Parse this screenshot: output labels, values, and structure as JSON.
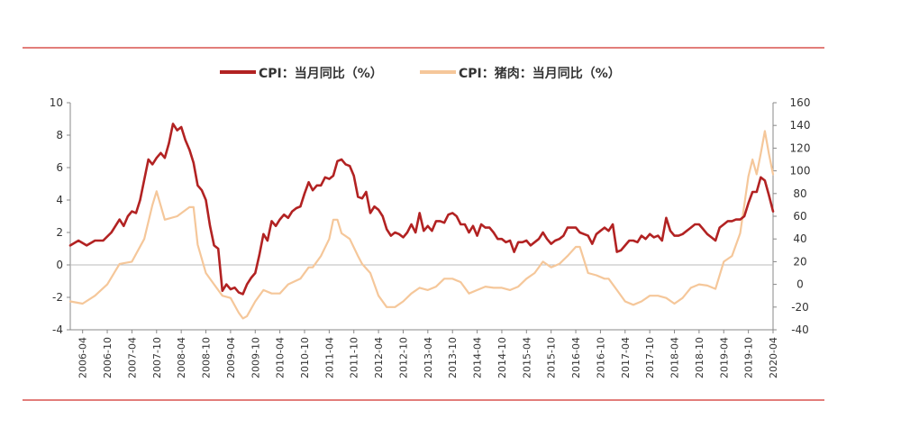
{
  "chart_data": {
    "type": "line",
    "legend": {
      "placement": "top-center",
      "entries": [
        "CPI：当月同比（%）",
        "CPI：猪肉：当月同比（%）"
      ]
    },
    "left_axis": {
      "range": [
        -4,
        10
      ],
      "ticks": [
        "-4",
        "-2",
        "0",
        "2",
        "4",
        "6",
        "8",
        "10"
      ]
    },
    "right_axis": {
      "range": [
        -40,
        160
      ],
      "ticks": [
        "-40",
        "-20",
        "0",
        "20",
        "40",
        "60",
        "80",
        "100",
        "120",
        "140",
        "160"
      ]
    },
    "x_tick_labels": [
      "2006-04",
      "2006-10",
      "2007-04",
      "2007-10",
      "2008-04",
      "2008-10",
      "2009-04",
      "2009-10",
      "2010-04",
      "2010-10",
      "2011-04",
      "2011-10",
      "2012-04",
      "2012-10",
      "2013-04",
      "2013-10",
      "2014-04",
      "2014-10",
      "2015-04",
      "2015-10",
      "2016-04",
      "2016-10",
      "2017-04",
      "2017-10",
      "2018-04",
      "2018-10",
      "2019-04",
      "2019-10",
      "2020-04"
    ],
    "series": [
      {
        "name": "CPI：当月同比（%）",
        "axis": "left",
        "color": "#b22222",
        "x_start": "2006-01",
        "x_end": "2020-04",
        "points": [
          [
            "2006-01",
            1.2
          ],
          [
            "2006-03",
            1.5
          ],
          [
            "2006-05",
            1.2
          ],
          [
            "2006-07",
            1.5
          ],
          [
            "2006-09",
            1.5
          ],
          [
            "2006-11",
            2.0
          ],
          [
            "2007-01",
            2.8
          ],
          [
            "2007-02",
            2.4
          ],
          [
            "2007-03",
            3.0
          ],
          [
            "2007-04",
            3.3
          ],
          [
            "2007-05",
            3.2
          ],
          [
            "2007-06",
            4.0
          ],
          [
            "2007-08",
            6.5
          ],
          [
            "2007-09",
            6.2
          ],
          [
            "2007-10",
            6.6
          ],
          [
            "2007-11",
            6.9
          ],
          [
            "2007-12",
            6.6
          ],
          [
            "2008-01",
            7.5
          ],
          [
            "2008-02",
            8.7
          ],
          [
            "2008-03",
            8.3
          ],
          [
            "2008-04",
            8.5
          ],
          [
            "2008-05",
            7.7
          ],
          [
            "2008-06",
            7.1
          ],
          [
            "2008-07",
            6.3
          ],
          [
            "2008-08",
            4.9
          ],
          [
            "2008-09",
            4.6
          ],
          [
            "2008-10",
            4.0
          ],
          [
            "2008-11",
            2.4
          ],
          [
            "2008-12",
            1.2
          ],
          [
            "2009-01",
            1.0
          ],
          [
            "2009-02",
            -1.6
          ],
          [
            "2009-03",
            -1.2
          ],
          [
            "2009-04",
            -1.5
          ],
          [
            "2009-05",
            -1.4
          ],
          [
            "2009-06",
            -1.7
          ],
          [
            "2009-07",
            -1.8
          ],
          [
            "2009-08",
            -1.2
          ],
          [
            "2009-09",
            -0.8
          ],
          [
            "2009-10",
            -0.5
          ],
          [
            "2009-11",
            0.6
          ],
          [
            "2009-12",
            1.9
          ],
          [
            "2010-01",
            1.5
          ],
          [
            "2010-02",
            2.7
          ],
          [
            "2010-03",
            2.4
          ],
          [
            "2010-04",
            2.8
          ],
          [
            "2010-05",
            3.1
          ],
          [
            "2010-06",
            2.9
          ],
          [
            "2010-07",
            3.3
          ],
          [
            "2010-08",
            3.5
          ],
          [
            "2010-09",
            3.6
          ],
          [
            "2010-10",
            4.4
          ],
          [
            "2010-11",
            5.1
          ],
          [
            "2010-12",
            4.6
          ],
          [
            "2011-01",
            4.9
          ],
          [
            "2011-02",
            4.9
          ],
          [
            "2011-03",
            5.4
          ],
          [
            "2011-04",
            5.3
          ],
          [
            "2011-05",
            5.5
          ],
          [
            "2011-06",
            6.4
          ],
          [
            "2011-07",
            6.5
          ],
          [
            "2011-08",
            6.2
          ],
          [
            "2011-09",
            6.1
          ],
          [
            "2011-10",
            5.5
          ],
          [
            "2011-11",
            4.2
          ],
          [
            "2011-12",
            4.1
          ],
          [
            "2012-01",
            4.5
          ],
          [
            "2012-02",
            3.2
          ],
          [
            "2012-03",
            3.6
          ],
          [
            "2012-04",
            3.4
          ],
          [
            "2012-05",
            3.0
          ],
          [
            "2012-06",
            2.2
          ],
          [
            "2012-07",
            1.8
          ],
          [
            "2012-08",
            2.0
          ],
          [
            "2012-09",
            1.9
          ],
          [
            "2012-10",
            1.7
          ],
          [
            "2012-11",
            2.0
          ],
          [
            "2012-12",
            2.5
          ],
          [
            "2013-01",
            2.0
          ],
          [
            "2013-02",
            3.2
          ],
          [
            "2013-03",
            2.1
          ],
          [
            "2013-04",
            2.4
          ],
          [
            "2013-05",
            2.1
          ],
          [
            "2013-06",
            2.7
          ],
          [
            "2013-07",
            2.7
          ],
          [
            "2013-08",
            2.6
          ],
          [
            "2013-09",
            3.1
          ],
          [
            "2013-10",
            3.2
          ],
          [
            "2013-11",
            3.0
          ],
          [
            "2013-12",
            2.5
          ],
          [
            "2014-01",
            2.5
          ],
          [
            "2014-02",
            2.0
          ],
          [
            "2014-03",
            2.4
          ],
          [
            "2014-04",
            1.8
          ],
          [
            "2014-05",
            2.5
          ],
          [
            "2014-06",
            2.3
          ],
          [
            "2014-07",
            2.3
          ],
          [
            "2014-08",
            2.0
          ],
          [
            "2014-09",
            1.6
          ],
          [
            "2014-10",
            1.6
          ],
          [
            "2014-11",
            1.4
          ],
          [
            "2014-12",
            1.5
          ],
          [
            "2015-01",
            0.8
          ],
          [
            "2015-02",
            1.4
          ],
          [
            "2015-03",
            1.4
          ],
          [
            "2015-04",
            1.5
          ],
          [
            "2015-05",
            1.2
          ],
          [
            "2015-06",
            1.4
          ],
          [
            "2015-07",
            1.6
          ],
          [
            "2015-08",
            2.0
          ],
          [
            "2015-09",
            1.6
          ],
          [
            "2015-10",
            1.3
          ],
          [
            "2015-11",
            1.5
          ],
          [
            "2015-12",
            1.6
          ],
          [
            "2016-01",
            1.8
          ],
          [
            "2016-02",
            2.3
          ],
          [
            "2016-03",
            2.3
          ],
          [
            "2016-04",
            2.3
          ],
          [
            "2016-05",
            2.0
          ],
          [
            "2016-06",
            1.9
          ],
          [
            "2016-07",
            1.8
          ],
          [
            "2016-08",
            1.3
          ],
          [
            "2016-09",
            1.9
          ],
          [
            "2016-10",
            2.1
          ],
          [
            "2016-11",
            2.3
          ],
          [
            "2016-12",
            2.1
          ],
          [
            "2017-01",
            2.5
          ],
          [
            "2017-02",
            0.8
          ],
          [
            "2017-03",
            0.9
          ],
          [
            "2017-04",
            1.2
          ],
          [
            "2017-05",
            1.5
          ],
          [
            "2017-06",
            1.5
          ],
          [
            "2017-07",
            1.4
          ],
          [
            "2017-08",
            1.8
          ],
          [
            "2017-09",
            1.6
          ],
          [
            "2017-10",
            1.9
          ],
          [
            "2017-11",
            1.7
          ],
          [
            "2017-12",
            1.8
          ],
          [
            "2018-01",
            1.5
          ],
          [
            "2018-02",
            2.9
          ],
          [
            "2018-03",
            2.1
          ],
          [
            "2018-04",
            1.8
          ],
          [
            "2018-05",
            1.8
          ],
          [
            "2018-06",
            1.9
          ],
          [
            "2018-07",
            2.1
          ],
          [
            "2018-08",
            2.3
          ],
          [
            "2018-09",
            2.5
          ],
          [
            "2018-10",
            2.5
          ],
          [
            "2018-11",
            2.2
          ],
          [
            "2018-12",
            1.9
          ],
          [
            "2019-01",
            1.7
          ],
          [
            "2019-02",
            1.5
          ],
          [
            "2019-03",
            2.3
          ],
          [
            "2019-04",
            2.5
          ],
          [
            "2019-05",
            2.7
          ],
          [
            "2019-06",
            2.7
          ],
          [
            "2019-07",
            2.8
          ],
          [
            "2019-08",
            2.8
          ],
          [
            "2019-09",
            3.0
          ],
          [
            "2019-10",
            3.8
          ],
          [
            "2019-11",
            4.5
          ],
          [
            "2019-12",
            4.5
          ],
          [
            "2020-01",
            5.4
          ],
          [
            "2020-02",
            5.2
          ],
          [
            "2020-03",
            4.3
          ],
          [
            "2020-04",
            3.3
          ]
        ]
      },
      {
        "name": "CPI：猪肉：当月同比（%）",
        "axis": "right",
        "color": "#f5c79a",
        "x_start": "2006-01",
        "x_end": "2020-04",
        "points": [
          [
            "2006-01",
            -15
          ],
          [
            "2006-04",
            -17
          ],
          [
            "2006-07",
            -10
          ],
          [
            "2006-10",
            0
          ],
          [
            "2007-01",
            18
          ],
          [
            "2007-04",
            20
          ],
          [
            "2007-07",
            40
          ],
          [
            "2007-09",
            70
          ],
          [
            "2007-10",
            82
          ],
          [
            "2007-12",
            57
          ],
          [
            "2008-03",
            60
          ],
          [
            "2008-06",
            68
          ],
          [
            "2008-07",
            68
          ],
          [
            "2008-08",
            35
          ],
          [
            "2008-10",
            10
          ],
          [
            "2008-12",
            0
          ],
          [
            "2009-02",
            -10
          ],
          [
            "2009-04",
            -12
          ],
          [
            "2009-06",
            -25
          ],
          [
            "2009-07",
            -30
          ],
          [
            "2009-08",
            -28
          ],
          [
            "2009-10",
            -15
          ],
          [
            "2009-12",
            -5
          ],
          [
            "2010-02",
            -8
          ],
          [
            "2010-04",
            -8
          ],
          [
            "2010-06",
            0
          ],
          [
            "2010-09",
            5
          ],
          [
            "2010-11",
            15
          ],
          [
            "2010-12",
            15
          ],
          [
            "2011-02",
            25
          ],
          [
            "2011-04",
            40
          ],
          [
            "2011-05",
            57
          ],
          [
            "2011-06",
            57
          ],
          [
            "2011-07",
            45
          ],
          [
            "2011-09",
            40
          ],
          [
            "2011-11",
            25
          ],
          [
            "2011-12",
            18
          ],
          [
            "2012-02",
            10
          ],
          [
            "2012-04",
            -10
          ],
          [
            "2012-06",
            -20
          ],
          [
            "2012-08",
            -20
          ],
          [
            "2012-10",
            -15
          ],
          [
            "2012-12",
            -8
          ],
          [
            "2013-02",
            -3
          ],
          [
            "2013-04",
            -5
          ],
          [
            "2013-06",
            -2
          ],
          [
            "2013-08",
            5
          ],
          [
            "2013-10",
            5
          ],
          [
            "2013-12",
            2
          ],
          [
            "2014-02",
            -8
          ],
          [
            "2014-04",
            -5
          ],
          [
            "2014-06",
            -2
          ],
          [
            "2014-08",
            -3
          ],
          [
            "2014-10",
            -3
          ],
          [
            "2014-12",
            -5
          ],
          [
            "2015-02",
            -2
          ],
          [
            "2015-04",
            5
          ],
          [
            "2015-06",
            10
          ],
          [
            "2015-08",
            20
          ],
          [
            "2015-10",
            15
          ],
          [
            "2015-12",
            18
          ],
          [
            "2016-02",
            25
          ],
          [
            "2016-04",
            33
          ],
          [
            "2016-05",
            33
          ],
          [
            "2016-07",
            10
          ],
          [
            "2016-09",
            8
          ],
          [
            "2016-11",
            5
          ],
          [
            "2016-12",
            5
          ],
          [
            "2017-02",
            -5
          ],
          [
            "2017-04",
            -15
          ],
          [
            "2017-06",
            -18
          ],
          [
            "2017-08",
            -15
          ],
          [
            "2017-10",
            -10
          ],
          [
            "2017-12",
            -10
          ],
          [
            "2018-02",
            -12
          ],
          [
            "2018-04",
            -17
          ],
          [
            "2018-06",
            -12
          ],
          [
            "2018-08",
            -3
          ],
          [
            "2018-10",
            0
          ],
          [
            "2018-12",
            -1
          ],
          [
            "2019-02",
            -4
          ],
          [
            "2019-04",
            20
          ],
          [
            "2019-06",
            25
          ],
          [
            "2019-08",
            45
          ],
          [
            "2019-09",
            70
          ],
          [
            "2019-10",
            95
          ],
          [
            "2019-11",
            110
          ],
          [
            "2019-12",
            97
          ],
          [
            "2020-01",
            115
          ],
          [
            "2020-02",
            135
          ],
          [
            "2020-03",
            115
          ],
          [
            "2020-04",
            97
          ]
        ]
      }
    ]
  }
}
